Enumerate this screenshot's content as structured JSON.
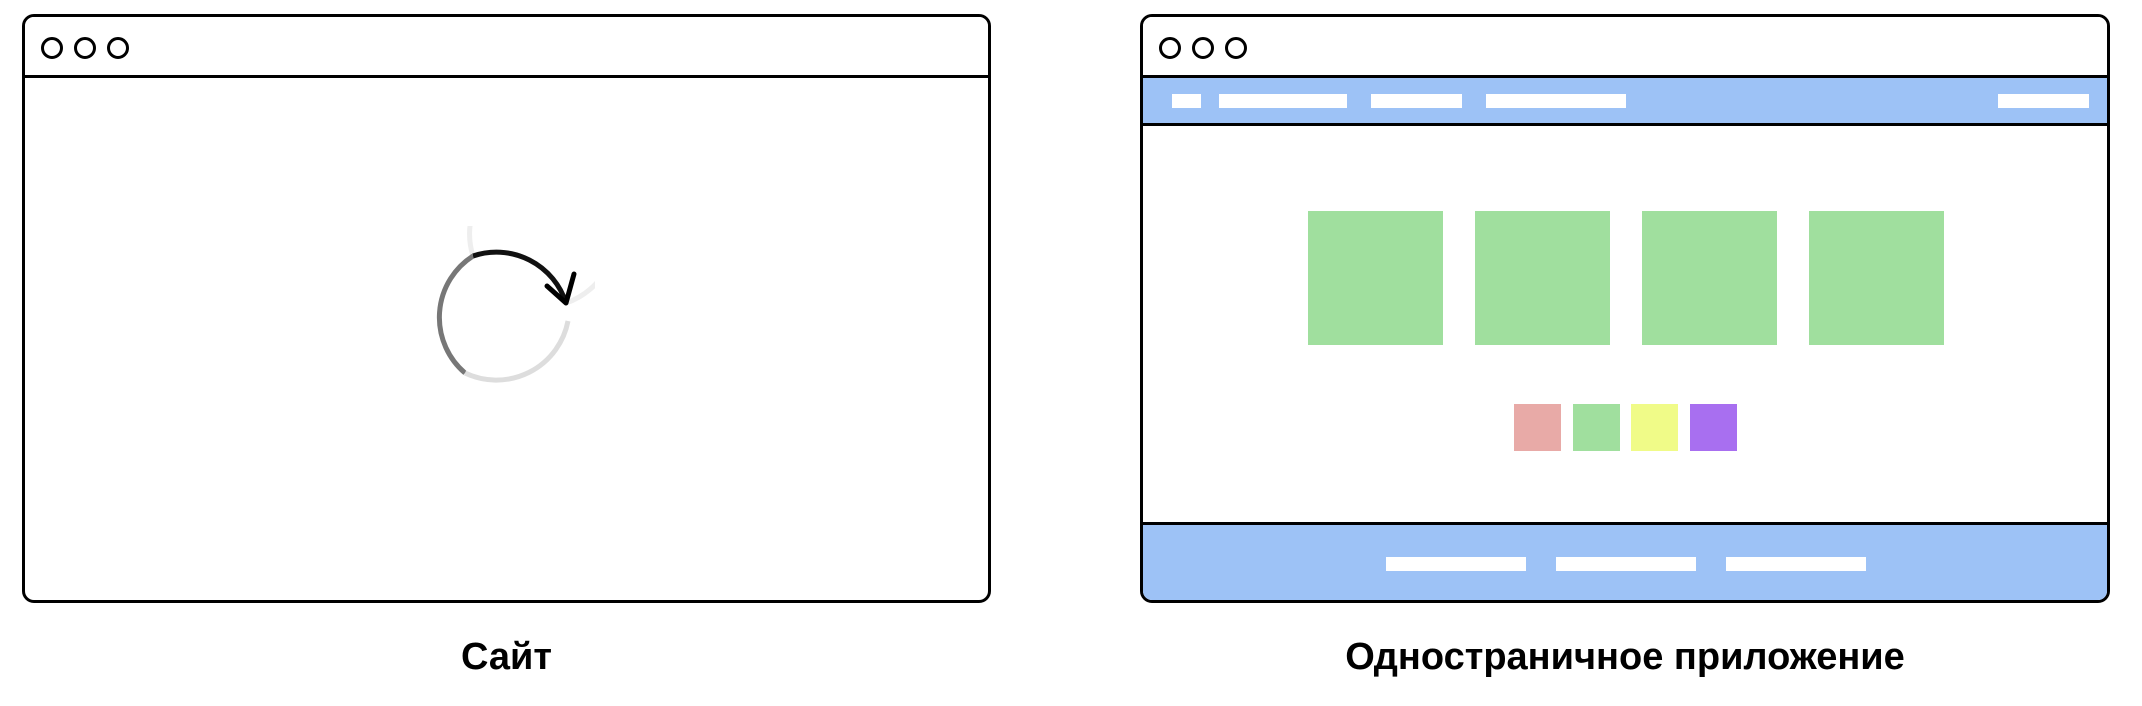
{
  "captions": {
    "left": "Сайт",
    "right": "Одностраничное приложение"
  },
  "icons": {
    "window_controls": "window-control-dots",
    "loader": "reload-spinner-icon"
  },
  "colors": {
    "nav_background": "#9dc2f6",
    "footer_background": "#9dc2f6",
    "big_tile": "#a0df9e",
    "small_tiles": [
      "#e8aaa7",
      "#a0df9e",
      "#f0fb88",
      "#a86ff0"
    ]
  }
}
